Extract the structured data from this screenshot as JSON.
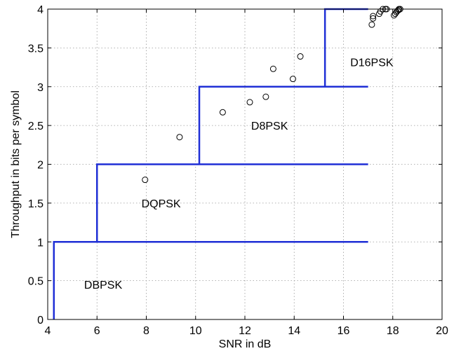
{
  "chart_data": {
    "type": "scatter",
    "title": "",
    "xlabel": "SNR in dB",
    "ylabel": "Throughput in bits per symbol",
    "xlim": [
      4,
      20
    ],
    "ylim": [
      0,
      4
    ],
    "xticks": [
      4,
      6,
      8,
      10,
      12,
      14,
      16,
      18,
      20
    ],
    "yticks": [
      0,
      0.5,
      1,
      1.5,
      2,
      2.5,
      3,
      3.5,
      4
    ],
    "ytick_labels": [
      "0",
      "0.5",
      "1",
      "1.5",
      "2",
      "2.5",
      "3",
      "3.5",
      "4"
    ],
    "grid": true,
    "step_color": "#1f2fd6",
    "step_lines": [
      {
        "x": [
          4.25,
          4.25,
          17.0
        ],
        "y": [
          0,
          1,
          1
        ]
      },
      {
        "x": [
          6.0,
          6.0,
          17.0
        ],
        "y": [
          1,
          2,
          2
        ]
      },
      {
        "x": [
          10.15,
          10.15,
          17.0
        ],
        "y": [
          2,
          3,
          3
        ]
      },
      {
        "x": [
          15.25,
          15.25,
          17.0
        ],
        "y": [
          3,
          4,
          4
        ]
      }
    ],
    "region_labels": [
      {
        "text": "DBPSK",
        "x": 6.25,
        "y": 0.45
      },
      {
        "text": "DQPSK",
        "x": 8.6,
        "y": 1.5
      },
      {
        "text": "D8PSK",
        "x": 13.0,
        "y": 2.5
      },
      {
        "text": "D16PSK",
        "x": 17.15,
        "y": 3.32
      }
    ],
    "scatter": {
      "marker": "circle",
      "color": "#000000",
      "x": [
        7.95,
        9.35,
        11.1,
        12.2,
        12.85,
        13.15,
        13.95,
        14.25,
        17.15,
        17.2,
        17.2,
        17.45,
        17.5,
        17.6,
        17.7,
        17.75,
        18.05,
        18.1,
        18.15,
        18.2,
        18.25,
        18.25,
        18.3
      ],
      "y": [
        1.8,
        2.35,
        2.67,
        2.8,
        2.87,
        3.23,
        3.1,
        3.39,
        3.8,
        3.88,
        3.91,
        3.94,
        3.97,
        4.0,
        4.0,
        4.0,
        3.92,
        3.94,
        3.96,
        3.98,
        3.99,
        4.0,
        4.0
      ]
    }
  }
}
